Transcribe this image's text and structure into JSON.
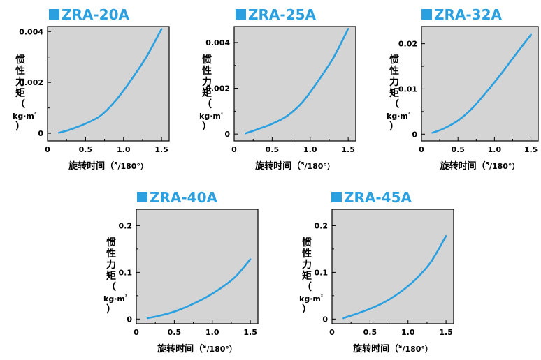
{
  "chart_data": [
    {
      "type": "line",
      "title": "ZRA-20A",
      "ylabel": "惯性力矩（kg·m²）",
      "ylabel_chars": [
        "惯",
        "性",
        "力",
        "矩",
        "（",
        "kg·m²",
        "）"
      ],
      "xlabel": "旋转时间（s/180°）",
      "xlabel_main": "旋转时间（",
      "xlabel_s": "s",
      "xlabel_deg": "/180°）",
      "xlim": [
        0,
        1.6
      ],
      "ylim": [
        -0.0003,
        0.0042
      ],
      "xticks": [
        0,
        0.5,
        1.0,
        1.5
      ],
      "xtick_labels": [
        "0",
        "0.5",
        "1.0",
        "1.5"
      ],
      "yticks": [
        0,
        0.002,
        0.004
      ],
      "ytick_labels": [
        "0",
        "0.002",
        "0.004"
      ],
      "series": [
        {
          "x": [
            0.15,
            0.3,
            0.5,
            0.7,
            0.9,
            1.1,
            1.3,
            1.5
          ],
          "y": [
            2e-05,
            0.00015,
            0.00038,
            0.0007,
            0.0013,
            0.0021,
            0.003,
            0.0041
          ]
        }
      ],
      "color": "#2aa0e0",
      "grid": false
    },
    {
      "type": "line",
      "title": "ZRA-25A",
      "ylabel": "惯性力矩（kg·m²）",
      "ylabel_chars": [
        "惯",
        "性",
        "力",
        "矩",
        "（",
        "kg·m²",
        "）"
      ],
      "xlabel": "旋转时间（s/180°）",
      "xlabel_main": "旋转时间（",
      "xlabel_s": "s",
      "xlabel_deg": "/180°）",
      "xlim": [
        0,
        1.6
      ],
      "ylim": [
        -0.0003,
        0.0047
      ],
      "xticks": [
        0,
        0.5,
        1.0,
        1.5
      ],
      "xtick_labels": [
        "0",
        "0.5",
        "1.0",
        "1.5"
      ],
      "yticks": [
        0,
        0.002,
        0.004
      ],
      "ytick_labels": [
        "0",
        "0.002",
        "0.004"
      ],
      "series": [
        {
          "x": [
            0.15,
            0.3,
            0.5,
            0.7,
            0.9,
            1.1,
            1.3,
            1.5
          ],
          "y": [
            3e-05,
            0.0002,
            0.00045,
            0.0008,
            0.0014,
            0.0023,
            0.0033,
            0.0046
          ]
        }
      ],
      "color": "#2aa0e0",
      "grid": false
    },
    {
      "type": "line",
      "title": "ZRA-32A",
      "ylabel": "惯性力矩（kg·m²）",
      "ylabel_chars": [
        "惯",
        "性",
        "力",
        "矩",
        "（",
        "kg·m²",
        "）"
      ],
      "xlabel": "旋转时间（s/180°）",
      "xlabel_main": "旋转时间（",
      "xlabel_s": "s",
      "xlabel_deg": "/180°）",
      "xlim": [
        0,
        1.6
      ],
      "ylim": [
        -0.0015,
        0.0238
      ],
      "xticks": [
        0,
        0.5,
        1.0,
        1.5
      ],
      "xtick_labels": [
        "0",
        "0.5",
        "1.0",
        "1.5"
      ],
      "yticks": [
        0,
        0.01,
        0.02
      ],
      "ytick_labels": [
        "0",
        "0.01",
        "0.02"
      ],
      "series": [
        {
          "x": [
            0.15,
            0.3,
            0.5,
            0.7,
            0.9,
            1.1,
            1.3,
            1.5
          ],
          "y": [
            0.0003,
            0.0012,
            0.003,
            0.0058,
            0.0095,
            0.0135,
            0.0178,
            0.022
          ]
        }
      ],
      "color": "#2aa0e0",
      "grid": false
    },
    {
      "type": "line",
      "title": "ZRA-40A",
      "ylabel": "惯性力矩（kg·m²）",
      "ylabel_chars": [
        "惯",
        "性",
        "力",
        "矩",
        "（",
        "kg·m²",
        "）"
      ],
      "xlabel": "旋转时间（s/180°）",
      "xlabel_main": "旋转时间（",
      "xlabel_s": "s",
      "xlabel_deg": "/180°）",
      "xlim": [
        0,
        1.6
      ],
      "ylim": [
        -0.01,
        0.235
      ],
      "xticks": [
        0,
        0.5,
        1.0,
        1.5
      ],
      "xtick_labels": [
        "0",
        "0.5",
        "1.0",
        "1.5"
      ],
      "yticks": [
        0,
        0.1,
        0.2
      ],
      "ytick_labels": [
        "0",
        "0.1",
        "0.2"
      ],
      "series": [
        {
          "x": [
            0.15,
            0.3,
            0.5,
            0.7,
            0.9,
            1.1,
            1.3,
            1.5
          ],
          "y": [
            0.002,
            0.007,
            0.016,
            0.029,
            0.045,
            0.065,
            0.09,
            0.128
          ]
        }
      ],
      "color": "#2aa0e0",
      "grid": false
    },
    {
      "type": "line",
      "title": "ZRA-45A",
      "ylabel": "惯性力矩（kg·m²）",
      "ylabel_chars": [
        "惯",
        "性",
        "力",
        "矩",
        "（",
        "kg·m²",
        "）"
      ],
      "xlabel": "旋转时间（s/180°）",
      "xlabel_main": "旋转时间（",
      "xlabel_s": "s",
      "xlabel_deg": "/180°）",
      "xlim": [
        0,
        1.6
      ],
      "ylim": [
        -0.01,
        0.235
      ],
      "xticks": [
        0,
        0.5,
        1.0,
        1.5
      ],
      "xtick_labels": [
        "0",
        "0.5",
        "1.0",
        "1.5"
      ],
      "yticks": [
        0,
        0.1,
        0.2
      ],
      "ytick_labels": [
        "0",
        "0.1",
        "0.2"
      ],
      "series": [
        {
          "x": [
            0.15,
            0.3,
            0.5,
            0.7,
            0.9,
            1.1,
            1.3,
            1.5
          ],
          "y": [
            0.002,
            0.01,
            0.022,
            0.037,
            0.058,
            0.085,
            0.122,
            0.178
          ]
        }
      ],
      "color": "#2aa0e0",
      "grid": false
    }
  ],
  "colors": {
    "plot_bg": "#d4d4d4",
    "curve": "#2aa0e0",
    "title_square": "#2aa0e0",
    "title_text": "#2aa0e0"
  }
}
